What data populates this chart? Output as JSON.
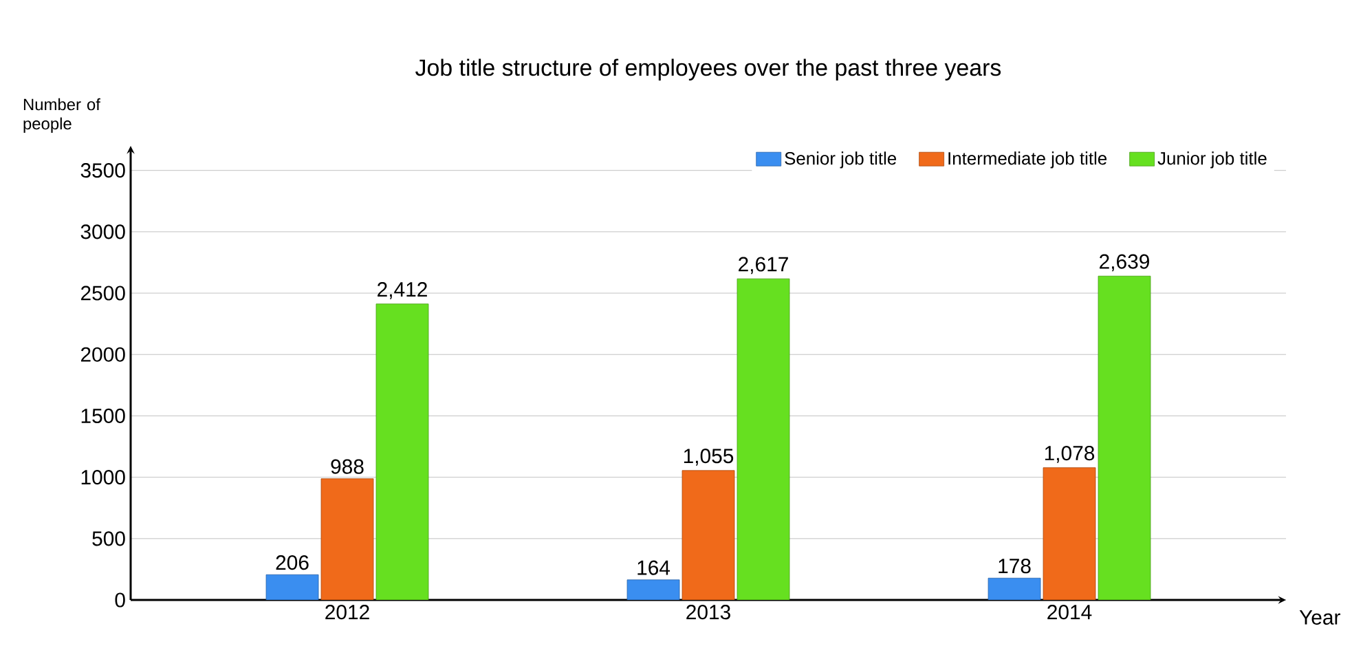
{
  "chart_data": {
    "type": "bar",
    "title": "Job title structure of employees over the past three years",
    "xlabel": "Year",
    "ylabel": "Number of people",
    "categories": [
      "2012",
      "2013",
      "2014"
    ],
    "series": [
      {
        "name": "Senior job title",
        "color": "#3a8ef0",
        "values": [
          206,
          164,
          178
        ],
        "value_labels": [
          "206",
          "164",
          "178"
        ]
      },
      {
        "name": "Intermediate job title",
        "color": "#f06a1a",
        "values": [
          988,
          1055,
          1078
        ],
        "value_labels": [
          "988",
          "1,055",
          "1,078"
        ]
      },
      {
        "name": "Junior job title",
        "color": "#66e020",
        "values": [
          2412,
          2617,
          2639
        ],
        "value_labels": [
          "2,412",
          "2,617",
          "2,639"
        ]
      }
    ],
    "ylim": [
      0,
      3700
    ],
    "yticks": [
      0,
      500,
      1000,
      1500,
      2000,
      2500,
      3000,
      3500
    ],
    "grid": "y",
    "legend": "top right"
  }
}
